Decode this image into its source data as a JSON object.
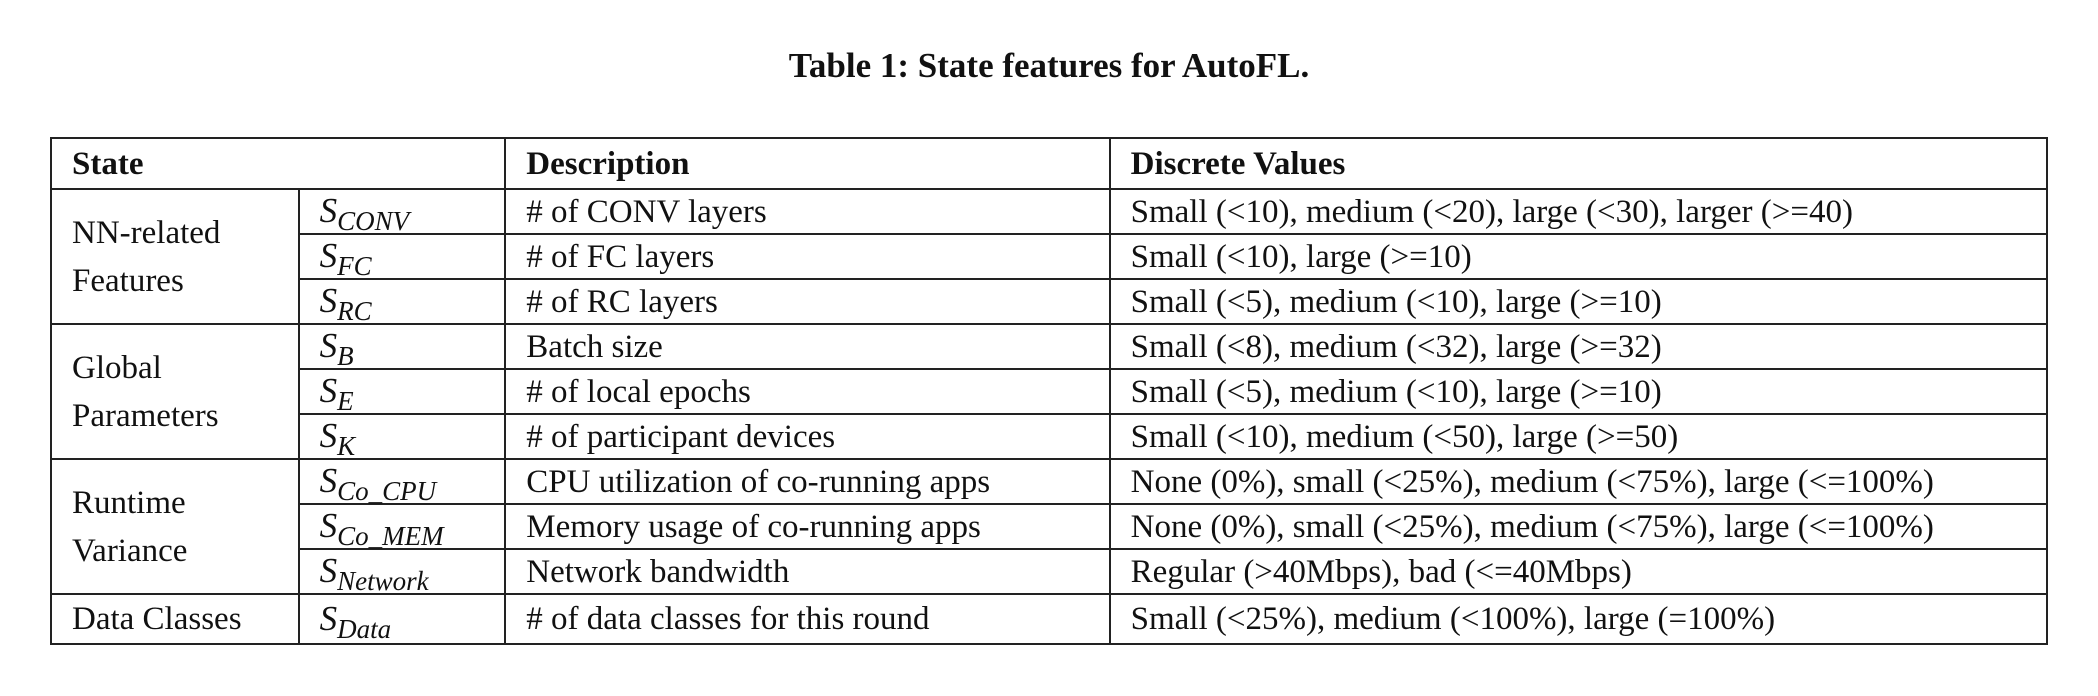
{
  "caption": "Table 1: State features for AutoFL.",
  "headers": {
    "state": "State",
    "description": "Description",
    "values": "Discrete Values"
  },
  "groups": [
    {
      "name": "NN-related Features",
      "rows": [
        {
          "sym": "S",
          "sub": "CONV",
          "description": "# of CONV layers",
          "values": "Small (<10), medium (<20), large (<30), larger (>=40)"
        },
        {
          "sym": "S",
          "sub": "FC",
          "description": "# of FC layers",
          "values": "Small (<10), large (>=10)"
        },
        {
          "sym": "S",
          "sub": "RC",
          "description": "# of RC layers",
          "values": "Small (<5), medium (<10), large (>=10)"
        }
      ]
    },
    {
      "name": "Global Parameters",
      "rows": [
        {
          "sym": "S",
          "sub": "B",
          "description": "Batch size",
          "values": "Small (<8), medium (<32), large (>=32)"
        },
        {
          "sym": "S",
          "sub": "E",
          "description": "# of local epochs",
          "values": "Small (<5), medium (<10), large (>=10)"
        },
        {
          "sym": "S",
          "sub": "K",
          "description": "# of participant devices",
          "values": "Small (<10), medium (<50), large (>=50)"
        }
      ]
    },
    {
      "name": "Runtime Variance",
      "rows": [
        {
          "sym": "S",
          "sub": "Co_CPU",
          "description": "CPU utilization of co-running apps",
          "values": "None (0%), small (<25%), medium (<75%), large (<=100%)"
        },
        {
          "sym": "S",
          "sub": "Co_MEM",
          "description": "Memory usage of co-running apps",
          "values": "None (0%), small (<25%), medium (<75%), large (<=100%)"
        },
        {
          "sym": "S",
          "sub": "Network",
          "description": "Network bandwidth",
          "values": "Regular (>40Mbps), bad (<=40Mbps)"
        }
      ]
    },
    {
      "name": "Data Classes",
      "rows": [
        {
          "sym": "S",
          "sub": "Data",
          "description": "# of data classes for this round",
          "values": "Small (<25%), medium (<100%), large (=100%)"
        }
      ]
    }
  ]
}
